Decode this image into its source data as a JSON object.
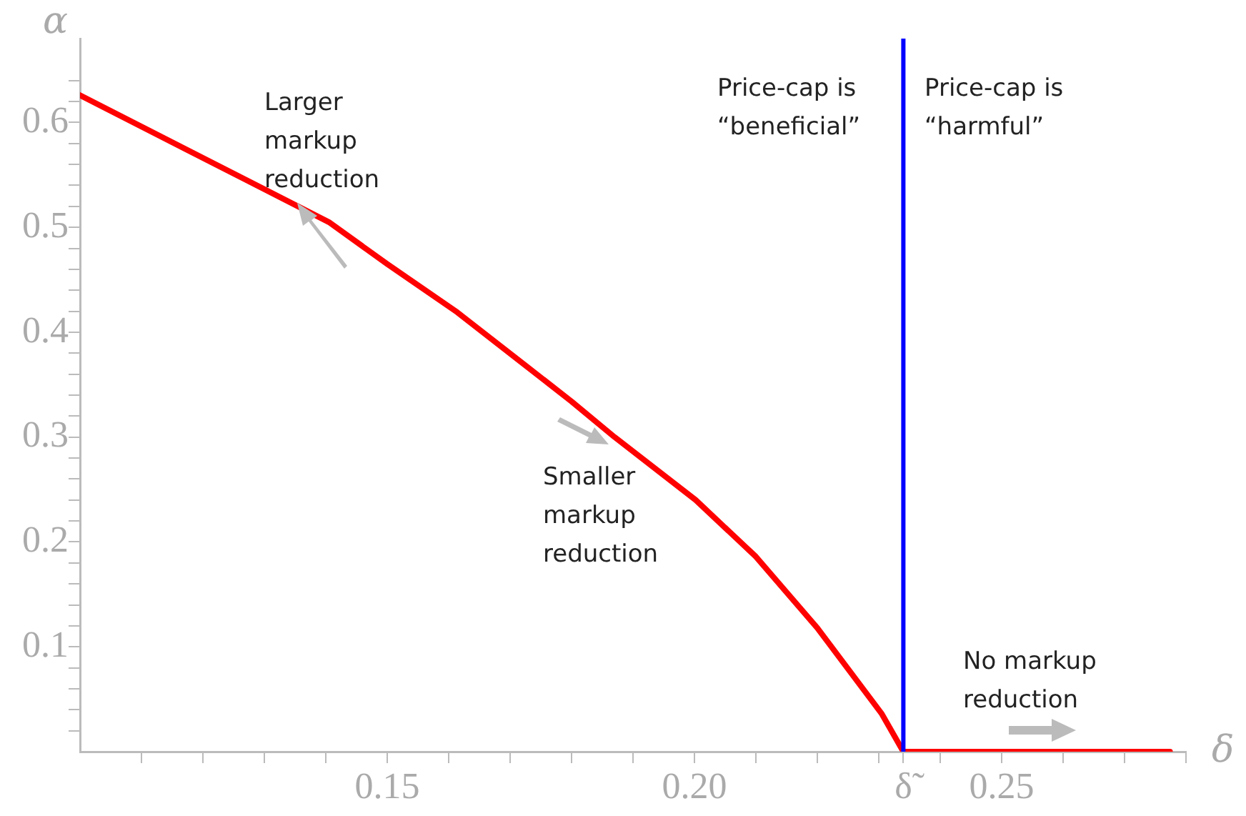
{
  "chart_data": {
    "type": "line",
    "xlabel": "δ",
    "ylabel": "α",
    "xlim": [
      0.1,
      0.28
    ],
    "ylim": [
      0,
      0.68
    ],
    "xticks": [
      {
        "value": 0.11,
        "label": null
      },
      {
        "value": 0.12,
        "label": null
      },
      {
        "value": 0.13,
        "label": null
      },
      {
        "value": 0.14,
        "label": null
      },
      {
        "value": 0.15,
        "label": "0.15"
      },
      {
        "value": 0.16,
        "label": null
      },
      {
        "value": 0.17,
        "label": null
      },
      {
        "value": 0.18,
        "label": null
      },
      {
        "value": 0.19,
        "label": null
      },
      {
        "value": 0.2,
        "label": "0.20"
      },
      {
        "value": 0.21,
        "label": null
      },
      {
        "value": 0.22,
        "label": null
      },
      {
        "value": 0.23,
        "label": null
      },
      {
        "value": 0.234,
        "label": "δ̃"
      },
      {
        "value": 0.24,
        "label": null
      },
      {
        "value": 0.25,
        "label": "0.25"
      },
      {
        "value": 0.26,
        "label": null
      },
      {
        "value": 0.27,
        "label": null
      },
      {
        "value": 0.28,
        "label": null
      }
    ],
    "yticks": [
      {
        "value": 0.02,
        "label": null
      },
      {
        "value": 0.04,
        "label": null
      },
      {
        "value": 0.06,
        "label": null
      },
      {
        "value": 0.08,
        "label": null
      },
      0.1,
      {
        "value": 0.12,
        "label": null
      },
      {
        "value": 0.14,
        "label": null
      },
      {
        "value": 0.16,
        "label": null
      },
      {
        "value": 0.18,
        "label": null
      },
      0.2,
      {
        "value": 0.22,
        "label": null
      },
      {
        "value": 0.24,
        "label": null
      },
      {
        "value": 0.26,
        "label": null
      },
      {
        "value": 0.28,
        "label": null
      },
      0.3,
      {
        "value": 0.32,
        "label": null
      },
      {
        "value": 0.34,
        "label": null
      },
      {
        "value": 0.36,
        "label": null
      },
      {
        "value": 0.38,
        "label": null
      },
      0.4,
      {
        "value": 0.42,
        "label": null
      },
      {
        "value": 0.44,
        "label": null
      },
      {
        "value": 0.46,
        "label": null
      },
      {
        "value": 0.48,
        "label": null
      },
      0.5,
      {
        "value": 0.52,
        "label": null
      },
      {
        "value": 0.54,
        "label": null
      },
      {
        "value": 0.56,
        "label": null
      },
      {
        "value": 0.58,
        "label": null
      },
      0.6,
      {
        "value": 0.62,
        "label": null
      },
      {
        "value": 0.64,
        "label": null
      }
    ],
    "grid": false,
    "legend": false,
    "marker": "none",
    "line_style": "solid",
    "series": [
      {
        "color": "#ff0000",
        "x": [
          0.1,
          0.1405,
          0.15,
          0.1614,
          0.18,
          0.187,
          0.2002,
          0.21,
          0.22,
          0.2305,
          0.234,
          0.2774
        ],
        "values": [
          0.626,
          0.505,
          0.465,
          0.419,
          0.334,
          0.3,
          0.24,
          0.186,
          0.118,
          0.036,
          0,
          0
        ]
      }
    ],
    "ref_lines": [
      {
        "axis": "x",
        "value": 0.234,
        "color": "#0000ff"
      }
    ],
    "annotations": [
      "Larger\nmarkup\nreduction",
      "Smaller\nmarkup\nreduction",
      "Price-cap is\n“beneficial”",
      "Price-cap is\n“harmful”",
      "No markup\nreduction"
    ]
  }
}
